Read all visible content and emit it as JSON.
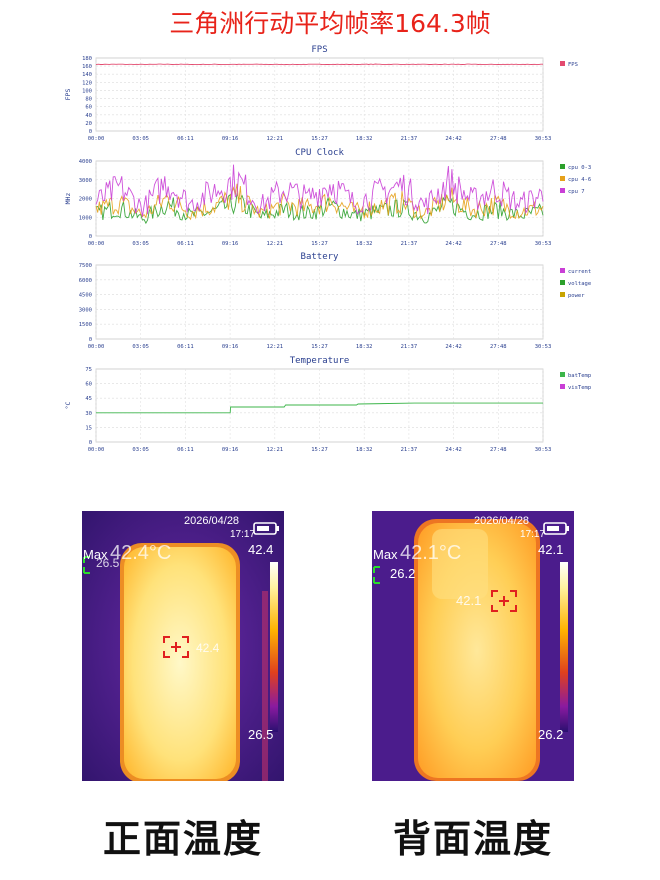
{
  "header": {
    "title": "三角洲行动平均帧率164.3帧"
  },
  "chart_data": [
    {
      "type": "line",
      "title": "FPS",
      "ylabel": "FPS",
      "ylim": [
        0,
        180
      ],
      "yticks": [
        "0",
        "20",
        "40",
        "60",
        "80",
        "100",
        "120",
        "140",
        "160",
        "180"
      ],
      "x_ticks": [
        "00:00",
        "03:05",
        "06:11",
        "09:16",
        "12:21",
        "15:27",
        "18:32",
        "21:37",
        "24:42",
        "27:48",
        "30:53"
      ],
      "series": [
        {
          "name": "FPS",
          "color": "#e34a6f",
          "values": [
            164.3,
            164.5,
            164.1,
            164.6,
            164.2,
            164.4,
            164.3,
            164.5,
            164.0,
            164.3,
            164.4,
            164.2,
            164.6,
            164.3,
            164.1,
            164.5,
            164.3,
            164.2,
            164.4,
            164.3
          ]
        }
      ],
      "legend": "right"
    },
    {
      "type": "line",
      "title": "CPU Clock",
      "ylabel": "MHz",
      "ylim": [
        0,
        4000
      ],
      "yticks": [
        "0",
        "1000",
        "2000",
        "3000",
        "4000"
      ],
      "x_ticks": [
        "00:00",
        "03:05",
        "06:11",
        "09:16",
        "12:21",
        "15:27",
        "18:32",
        "21:37",
        "24:42",
        "27:48",
        "30:53"
      ],
      "series": [
        {
          "name": "cpu 0-3",
          "color": "#2ca02c",
          "values": [
            1200,
            1500,
            900,
            1700,
            1100,
            1300,
            1800,
            1000,
            1400,
            1200,
            1600,
            1100,
            1300,
            1500,
            1000,
            1700,
            1200,
            1400,
            1100,
            1300
          ]
        },
        {
          "name": "cpu 4-6",
          "color": "#e6a11b",
          "values": [
            1400,
            1800,
            1100,
            2000,
            1300,
            1600,
            2100,
            1200,
            1700,
            1500,
            1900,
            1300,
            1600,
            1800,
            1200,
            2000,
            1400,
            1700,
            1300,
            1500
          ]
        },
        {
          "name": "cpu 7",
          "color": "#c93fd6",
          "values": [
            1800,
            2600,
            1500,
            2900,
            1700,
            2400,
            3000,
            1600,
            2500,
            2000,
            2800,
            1700,
            2300,
            2700,
            1600,
            2900,
            1900,
            2500,
            1700,
            2200
          ]
        }
      ],
      "legend": "right"
    },
    {
      "type": "line",
      "title": "Battery",
      "ylabel": "",
      "ylim": [
        0,
        7500
      ],
      "yticks": [
        "0",
        "1500",
        "3000",
        "4500",
        "6000",
        "7500"
      ],
      "x_ticks": [
        "00:00",
        "03:05",
        "06:11",
        "09:16",
        "12:21",
        "15:27",
        "18:32",
        "21:37",
        "24:42",
        "27:48",
        "30:53"
      ],
      "series": [
        {
          "name": "current",
          "color": "#c93fd6",
          "values": []
        },
        {
          "name": "voltage",
          "color": "#2ca02c",
          "values": []
        },
        {
          "name": "power",
          "color": "#c8a400",
          "values": []
        }
      ],
      "legend": "right"
    },
    {
      "type": "line",
      "title": "Temperature",
      "ylabel": "°C",
      "ylim": [
        0,
        75
      ],
      "yticks": [
        "0",
        "15",
        "30",
        "45",
        "60",
        "75"
      ],
      "x_ticks": [
        "00:00",
        "03:05",
        "06:11",
        "09:16",
        "12:21",
        "15:27",
        "18:32",
        "21:37",
        "24:42",
        "27:48",
        "30:53"
      ],
      "series": [
        {
          "name": "batTemp",
          "color": "#3cb54a",
          "x": [
            0,
            9.27,
            9.3,
            13,
            13.1,
            18,
            18.1,
            22,
            30.88
          ],
          "values": [
            30,
            30,
            36,
            36,
            38,
            38,
            39,
            40,
            40
          ]
        },
        {
          "name": "visTemp",
          "color": "#c93fd6",
          "values": []
        }
      ],
      "legend": "right"
    }
  ],
  "thermal": {
    "front": {
      "date": "2026/04/28",
      "time": "17:17",
      "max_label": "Max",
      "max_value": "42.4°C",
      "min_spot": "26.5",
      "center_value": "42.4",
      "scale_top": "42.4",
      "scale_bottom": "26.5",
      "caption": "正面温度"
    },
    "back": {
      "date": "2026/04/28",
      "time": "17:17",
      "max_label": "Max",
      "max_value": "42.1°C",
      "min_spot": "26.2",
      "center_value": "42.1",
      "scale_top": "42.1",
      "scale_bottom": "26.2",
      "caption": "背面温度"
    }
  },
  "colors": {
    "title_red": "#e8231a",
    "axis_blue": "#2a3f8f"
  }
}
